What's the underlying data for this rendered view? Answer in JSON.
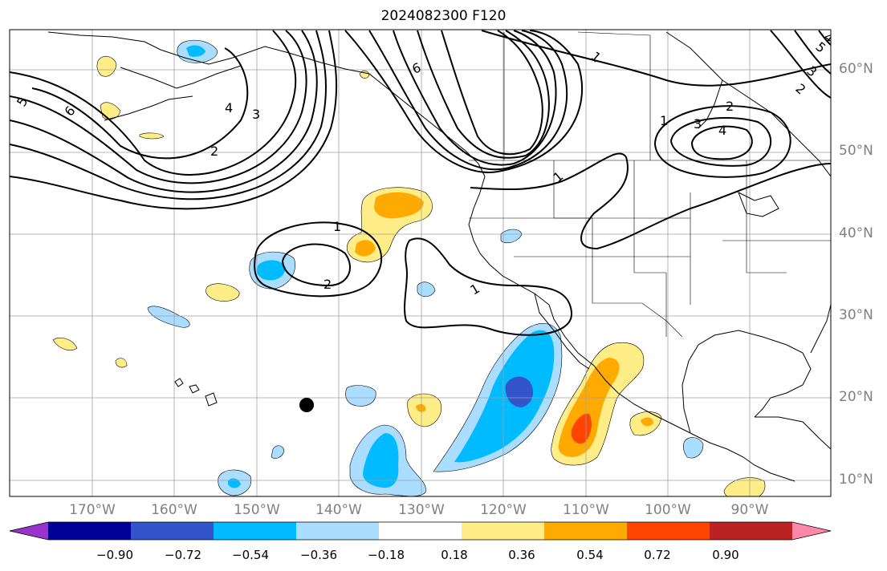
{
  "title": "2024082300 F120",
  "lat_labels": [
    "60°N",
    "50°N",
    "40°N",
    "30°N",
    "20°N",
    "10°N"
  ],
  "lon_labels": [
    "170°W",
    "160°W",
    "150°W",
    "140°W",
    "130°W",
    "120°W",
    "110°W",
    "100°W",
    "90°W"
  ],
  "colorbar": {
    "ticks": [
      "−0.90",
      "−0.72",
      "−0.54",
      "−0.36",
      "−0.18",
      "0.18",
      "0.36",
      "0.54",
      "0.72",
      "0.90"
    ],
    "colors": [
      "#9933cc",
      "#000099",
      "#3355cc",
      "#00bbff",
      "#aaddff",
      "#ffffff",
      "#ffee88",
      "#ffaa00",
      "#ff4400",
      "#bb2222",
      "#ff88aa"
    ]
  },
  "contour_labels": [
    "6",
    "5",
    "4",
    "3",
    "2",
    "1",
    "1",
    "2",
    "1",
    "1",
    "1",
    "2",
    "3",
    "4",
    "2",
    "3",
    "6",
    "5",
    "4"
  ],
  "colors": {
    "grid": "#a0a0a0",
    "contour": "#000000",
    "coast": "#000000"
  }
}
